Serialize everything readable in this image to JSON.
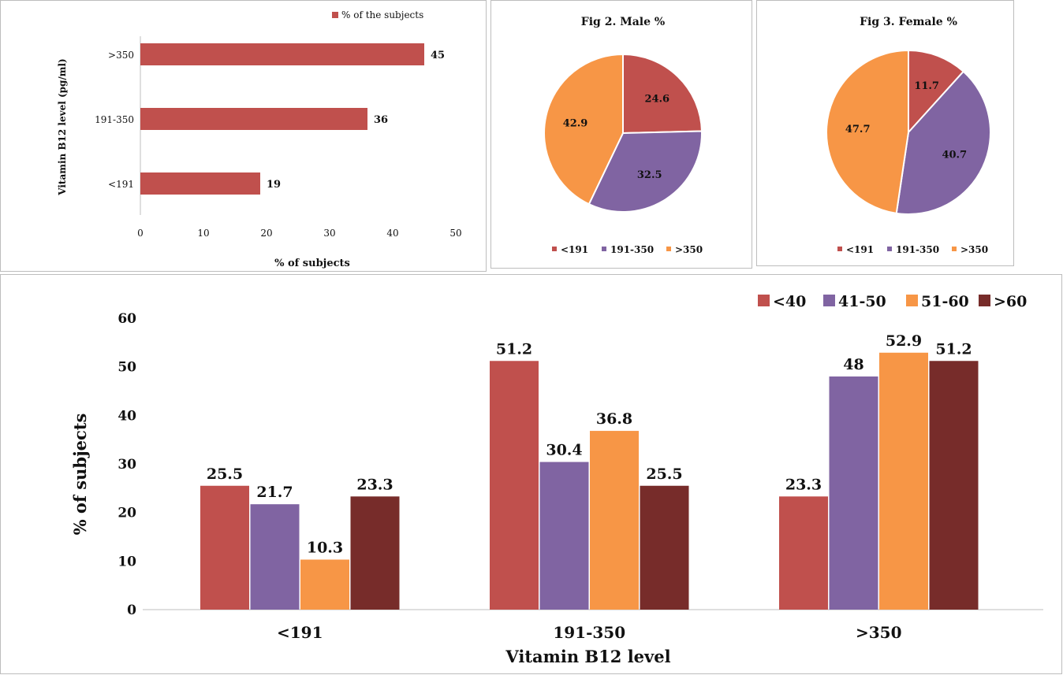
{
  "colors": {
    "red": "#c0504d",
    "purple": "#8064a2",
    "orange": "#f79646",
    "maroon": "#772c2a"
  },
  "chart_data": [
    {
      "type": "bar",
      "orientation": "horizontal",
      "title": "",
      "legend": "% of the subjects",
      "ylabel": "Vitamin B12 level (pg/ml)",
      "xlabel": "% of subjects",
      "categories": [
        ">350",
        "191-350",
        "<191"
      ],
      "values": [
        45,
        36,
        19
      ],
      "value_labels": [
        "45",
        "36",
        "19"
      ],
      "xlim": [
        0,
        50
      ],
      "xticks": [
        "0",
        "10",
        "20",
        "30",
        "40",
        "50"
      ]
    },
    {
      "type": "pie",
      "title": "Fig 2. Male %",
      "labels": [
        "<191",
        "191-350",
        ">350"
      ],
      "values": [
        24.6,
        32.5,
        42.9
      ],
      "value_labels": [
        "24.6",
        "32.5",
        "42.9"
      ]
    },
    {
      "type": "pie",
      "title": "Fig 3. Female %",
      "labels": [
        "<191",
        "191-350",
        ">350"
      ],
      "values": [
        11.7,
        40.7,
        47.7
      ],
      "value_labels": [
        "11.7",
        "40.7",
        "47.7"
      ]
    },
    {
      "type": "bar",
      "orientation": "vertical",
      "title": "",
      "xlabel": "Vitamin B12 level",
      "ylabel": "% of subjects",
      "categories": [
        "<191",
        "191-350",
        ">350"
      ],
      "series": [
        {
          "name": "<40",
          "values": [
            25.5,
            51.2,
            23.3
          ],
          "value_labels": [
            "25.5",
            "51.2",
            "23.3"
          ]
        },
        {
          "name": "41-50",
          "values": [
            21.7,
            30.4,
            48
          ],
          "value_labels": [
            "21.7",
            "30.4",
            "48"
          ]
        },
        {
          "name": "51-60",
          "values": [
            10.3,
            36.8,
            52.9
          ],
          "value_labels": [
            "10.3",
            "36.8",
            "52.9"
          ]
        },
        {
          "name": ">60",
          "values": [
            23.3,
            25.5,
            51.2
          ],
          "value_labels": [
            "23.3",
            "25.5",
            "51.2"
          ]
        }
      ],
      "ylim": [
        0,
        60
      ],
      "yticks": [
        "0",
        "10",
        "20",
        "30",
        "40",
        "50",
        "60"
      ]
    }
  ]
}
